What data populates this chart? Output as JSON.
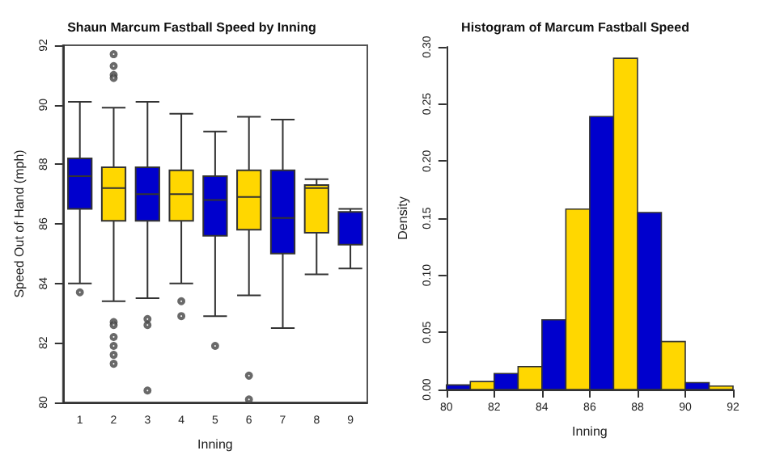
{
  "chart_data": [
    {
      "type": "box",
      "title": "Shaun Marcum Fastball Speed by Inning",
      "xlabel": "Inning",
      "ylabel": "Speed Out of Hand (mph)",
      "categories": [
        "1",
        "2",
        "3",
        "4",
        "5",
        "6",
        "7",
        "8",
        "9"
      ],
      "colors": [
        "#0000cd",
        "#ffd700",
        "#0000cd",
        "#ffd700",
        "#0000cd",
        "#ffd700",
        "#0000cd",
        "#ffd700",
        "#0000cd"
      ],
      "boxes": [
        {
          "low": 84.0,
          "q1": 86.5,
          "median": 87.6,
          "q3": 88.2,
          "high": 90.1,
          "outliers": [
            83.7
          ]
        },
        {
          "low": 83.4,
          "q1": 86.1,
          "median": 87.2,
          "q3": 87.9,
          "high": 89.9,
          "outliers": [
            91.7,
            91.3,
            91.0,
            90.9,
            82.7,
            82.6,
            82.2,
            81.9,
            81.6,
            81.3
          ]
        },
        {
          "low": 83.5,
          "q1": 86.1,
          "median": 87.0,
          "q3": 87.9,
          "high": 90.1,
          "outliers": [
            82.8,
            82.6,
            80.4
          ]
        },
        {
          "low": 84.0,
          "q1": 86.1,
          "median": 87.0,
          "q3": 87.8,
          "high": 89.7,
          "outliers": [
            83.4,
            82.9
          ]
        },
        {
          "low": 82.9,
          "q1": 85.6,
          "median": 86.8,
          "q3": 87.6,
          "high": 89.1,
          "outliers": [
            81.9
          ]
        },
        {
          "low": 83.6,
          "q1": 85.8,
          "median": 86.9,
          "q3": 87.8,
          "high": 89.6,
          "outliers": [
            80.9,
            80.1
          ]
        },
        {
          "low": 82.5,
          "q1": 85.0,
          "median": 86.2,
          "q3": 87.8,
          "high": 89.5
        },
        {
          "low": 84.3,
          "q1": 85.7,
          "median": 87.2,
          "q3": 87.3,
          "high": 87.5
        },
        {
          "low": 84.5,
          "q1": 85.3,
          "median": 86.4,
          "q3": 86.4,
          "high": 86.5
        }
      ],
      "ylim": [
        80,
        92
      ],
      "yticks": [
        80,
        82,
        84,
        86,
        88,
        90,
        92
      ]
    },
    {
      "type": "histogram",
      "title": "Histogram of Marcum Fastball Speed",
      "xlabel": "Inning",
      "ylabel": "Density",
      "bins": [
        80,
        81,
        82,
        83,
        84,
        85,
        86,
        87,
        88,
        89,
        90,
        91,
        92
      ],
      "values": [
        0.004,
        0.007,
        0.014,
        0.02,
        0.061,
        0.158,
        0.239,
        0.29,
        0.155,
        0.042,
        0.006,
        0.003
      ],
      "colors": [
        "#0000cd",
        "#ffd700",
        "#0000cd",
        "#ffd700",
        "#0000cd",
        "#ffd700",
        "#0000cd",
        "#ffd700",
        "#0000cd",
        "#ffd700",
        "#0000cd",
        "#ffd700"
      ],
      "xlim": [
        80,
        92
      ],
      "xticks": [
        80,
        82,
        84,
        86,
        88,
        90,
        92
      ],
      "ylim": [
        0,
        0.3
      ],
      "yticks": [
        {
          "value": 0,
          "label": "0.00"
        },
        {
          "value": 0.05,
          "label": "0.05"
        },
        {
          "value": 0.1,
          "label": "0.10"
        },
        {
          "value": 0.15,
          "label": "0.15"
        },
        {
          "value": 0.2,
          "label": "0.20"
        },
        {
          "value": 0.25,
          "label": "0.25"
        },
        {
          "value": 0.3,
          "label": "0.30"
        }
      ]
    }
  ]
}
